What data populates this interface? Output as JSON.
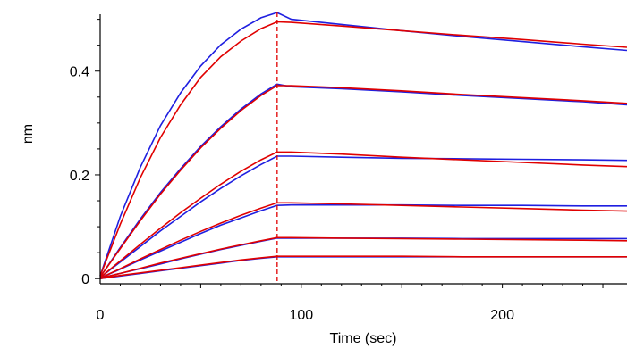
{
  "chart_data": {
    "type": "line",
    "title": "",
    "xlabel": "Time (sec)",
    "ylabel": "nm",
    "xlim": [
      0,
      262
    ],
    "ylim": [
      -0.01,
      0.52
    ],
    "x_ticks": [
      0,
      100,
      200
    ],
    "x_tick_labels": [
      "0",
      "100",
      "200"
    ],
    "y_ticks": [
      0,
      0.2,
      0.4
    ],
    "y_tick_labels": [
      "0",
      "0.2",
      "0.4"
    ],
    "grid": false,
    "legend": "none",
    "colors": {
      "measured": "#1f1fe0",
      "fit": "#e00000",
      "marker": "#e00000",
      "axis": "#000000"
    },
    "association_end": 88,
    "series": [
      {
        "role": "measured",
        "x": [
          0,
          10,
          20,
          30,
          40,
          50,
          60,
          70,
          80,
          88,
          95,
          120,
          150,
          180,
          210,
          240,
          262
        ],
        "values": [
          0.005,
          0.12,
          0.215,
          0.295,
          0.358,
          0.41,
          0.451,
          0.481,
          0.503,
          0.513,
          0.5,
          0.49,
          0.478,
          0.467,
          0.457,
          0.447,
          0.44
        ]
      },
      {
        "role": "fit",
        "x": [
          0,
          10,
          20,
          30,
          40,
          50,
          60,
          70,
          80,
          88,
          95,
          120,
          150,
          180,
          210,
          240,
          262
        ],
        "values": [
          0.005,
          0.105,
          0.195,
          0.272,
          0.335,
          0.388,
          0.428,
          0.458,
          0.482,
          0.495,
          0.494,
          0.487,
          0.478,
          0.469,
          0.461,
          0.452,
          0.446
        ]
      },
      {
        "role": "measured",
        "x": [
          0,
          10,
          20,
          30,
          40,
          50,
          60,
          70,
          80,
          88,
          95,
          120,
          150,
          180,
          210,
          240,
          262
        ],
        "values": [
          0.003,
          0.06,
          0.115,
          0.166,
          0.212,
          0.255,
          0.293,
          0.327,
          0.356,
          0.375,
          0.37,
          0.366,
          0.36,
          0.353,
          0.347,
          0.341,
          0.335
        ]
      },
      {
        "role": "fit",
        "x": [
          0,
          10,
          20,
          30,
          40,
          50,
          60,
          70,
          80,
          88,
          95,
          120,
          150,
          180,
          210,
          240,
          262
        ],
        "values": [
          0.003,
          0.058,
          0.112,
          0.163,
          0.209,
          0.252,
          0.29,
          0.324,
          0.353,
          0.372,
          0.372,
          0.368,
          0.362,
          0.355,
          0.349,
          0.343,
          0.338
        ]
      },
      {
        "role": "measured",
        "x": [
          0,
          10,
          20,
          30,
          40,
          50,
          60,
          70,
          80,
          88,
          95,
          120,
          150,
          180,
          210,
          240,
          262
        ],
        "values": [
          0.002,
          0.032,
          0.062,
          0.092,
          0.12,
          0.148,
          0.174,
          0.198,
          0.22,
          0.236,
          0.236,
          0.234,
          0.232,
          0.231,
          0.23,
          0.229,
          0.228
        ]
      },
      {
        "role": "fit",
        "x": [
          0,
          10,
          20,
          30,
          40,
          50,
          60,
          70,
          80,
          88,
          95,
          120,
          150,
          180,
          210,
          240,
          262
        ],
        "values": [
          0.002,
          0.034,
          0.066,
          0.097,
          0.127,
          0.155,
          0.182,
          0.207,
          0.229,
          0.244,
          0.244,
          0.24,
          0.234,
          0.229,
          0.224,
          0.219,
          0.216
        ]
      },
      {
        "role": "measured",
        "x": [
          0,
          10,
          20,
          30,
          40,
          50,
          60,
          70,
          80,
          88,
          95,
          120,
          150,
          180,
          210,
          240,
          262
        ],
        "values": [
          0.001,
          0.018,
          0.036,
          0.053,
          0.07,
          0.087,
          0.103,
          0.117,
          0.131,
          0.141,
          0.142,
          0.142,
          0.142,
          0.141,
          0.141,
          0.14,
          0.14
        ]
      },
      {
        "role": "fit",
        "x": [
          0,
          10,
          20,
          30,
          40,
          50,
          60,
          70,
          80,
          88,
          95,
          120,
          150,
          180,
          210,
          240,
          262
        ],
        "values": [
          0.001,
          0.019,
          0.038,
          0.056,
          0.074,
          0.091,
          0.107,
          0.122,
          0.136,
          0.146,
          0.146,
          0.144,
          0.141,
          0.138,
          0.135,
          0.132,
          0.13
        ]
      },
      {
        "role": "measured",
        "x": [
          0,
          10,
          20,
          30,
          40,
          50,
          60,
          70,
          80,
          88,
          95,
          120,
          150,
          180,
          210,
          240,
          262
        ],
        "values": [
          0.001,
          0.01,
          0.019,
          0.028,
          0.038,
          0.047,
          0.056,
          0.064,
          0.072,
          0.078,
          0.078,
          0.078,
          0.078,
          0.077,
          0.077,
          0.077,
          0.077
        ]
      },
      {
        "role": "fit",
        "x": [
          0,
          10,
          20,
          30,
          40,
          50,
          60,
          70,
          80,
          88,
          95,
          120,
          150,
          180,
          210,
          240,
          262
        ],
        "values": [
          0.001,
          0.01,
          0.02,
          0.03,
          0.039,
          0.048,
          0.057,
          0.065,
          0.073,
          0.079,
          0.079,
          0.078,
          0.077,
          0.076,
          0.075,
          0.074,
          0.073
        ]
      },
      {
        "role": "measured",
        "x": [
          0,
          10,
          20,
          30,
          40,
          50,
          60,
          70,
          80,
          88,
          95,
          120,
          150,
          180,
          210,
          240,
          262
        ],
        "values": [
          0.0,
          0.005,
          0.01,
          0.015,
          0.02,
          0.025,
          0.03,
          0.035,
          0.039,
          0.042,
          0.042,
          0.042,
          0.042,
          0.042,
          0.042,
          0.042,
          0.042
        ]
      },
      {
        "role": "fit",
        "x": [
          0,
          10,
          20,
          30,
          40,
          50,
          60,
          70,
          80,
          88,
          95,
          120,
          150,
          180,
          210,
          240,
          262
        ],
        "values": [
          0.0,
          0.006,
          0.011,
          0.016,
          0.021,
          0.026,
          0.031,
          0.036,
          0.04,
          0.043,
          0.043,
          0.043,
          0.043,
          0.042,
          0.042,
          0.042,
          0.042
        ]
      }
    ]
  }
}
